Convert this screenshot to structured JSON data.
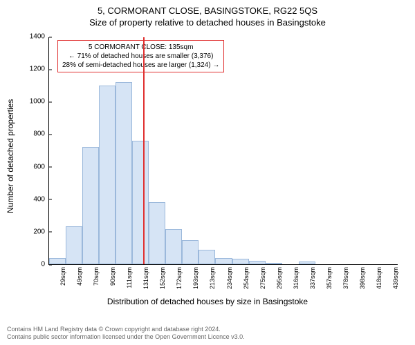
{
  "header": {
    "address": "5, CORMORANT CLOSE, BASINGSTOKE, RG22 5QS",
    "subtitle": "Size of property relative to detached houses in Basingstoke"
  },
  "info_box": {
    "line1": "5 CORMORANT CLOSE: 135sqm",
    "line2": "← 71% of detached houses are smaller (3,376)",
    "line3": "28% of semi-detached houses are larger (1,324) →",
    "border_color": "#e03030"
  },
  "chart": {
    "type": "histogram",
    "y_label": "Number of detached properties",
    "x_label": "Distribution of detached houses by size in Basingstoke",
    "y_max": 1400,
    "y_tick_step": 200,
    "y_ticks": [
      0,
      200,
      400,
      600,
      800,
      1000,
      1200,
      1400
    ],
    "bar_fill": "#d6e4f5",
    "bar_stroke": "#9bb8db",
    "background": "#ffffff",
    "reference_line": {
      "value_sqm": 135,
      "color": "#e03030"
    },
    "x_labels": [
      "29sqm",
      "49sqm",
      "70sqm",
      "90sqm",
      "111sqm",
      "131sqm",
      "152sqm",
      "172sqm",
      "193sqm",
      "213sqm",
      "234sqm",
      "254sqm",
      "275sqm",
      "295sqm",
      "316sqm",
      "337sqm",
      "357sqm",
      "378sqm",
      "398sqm",
      "418sqm",
      "439sqm"
    ],
    "values": [
      40,
      235,
      720,
      1100,
      1120,
      760,
      380,
      215,
      150,
      90,
      40,
      35,
      20,
      10,
      0,
      15,
      0,
      0,
      0,
      0,
      0
    ]
  },
  "footer": {
    "line1": "Contains HM Land Registry data © Crown copyright and database right 2024.",
    "line2": "Contains public sector information licensed under the Open Government Licence v3.0."
  }
}
